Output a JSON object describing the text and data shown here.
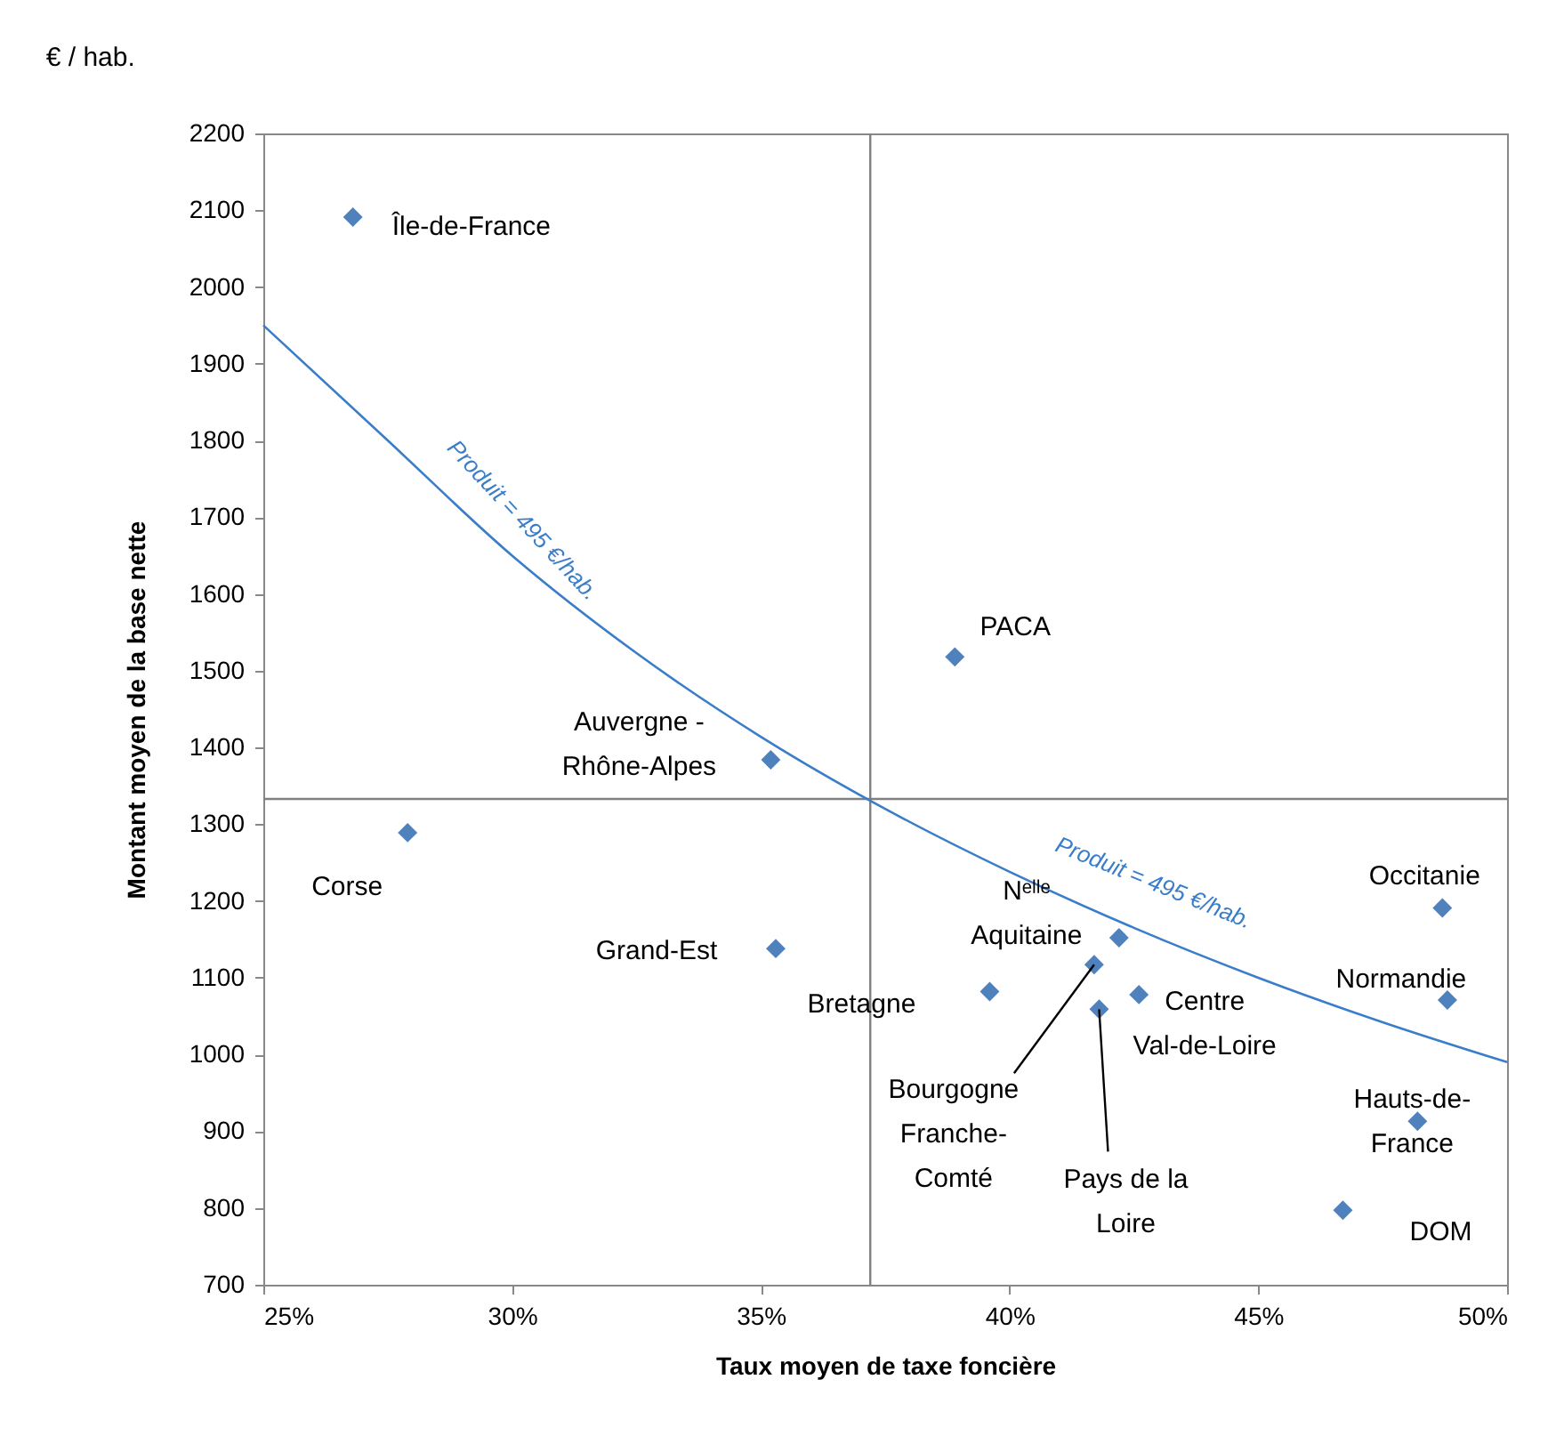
{
  "chart_data": {
    "type": "scatter",
    "subtitle": "€ / hab.",
    "xlabel": "Taux moyen de taxe foncière",
    "ylabel": "Montant moyen de la base nette",
    "xlim": [
      25,
      50
    ],
    "xticks": [
      {
        "value": 25,
        "label": "25%"
      },
      {
        "value": 30,
        "label": "30%"
      },
      {
        "value": 35,
        "label": "35%"
      },
      {
        "value": 40,
        "label": "40%"
      },
      {
        "value": 45,
        "label": "45%"
      },
      {
        "value": 50,
        "label": "50%"
      }
    ],
    "ylim": [
      700,
      2200
    ],
    "yticks": [
      700,
      800,
      900,
      1000,
      1100,
      1200,
      1300,
      1400,
      1500,
      1600,
      1700,
      1800,
      1900,
      2000,
      2100,
      2200
    ],
    "grid": false,
    "marker": "diamond",
    "series": [
      {
        "color": "#4f81bd",
        "x": [
          26.8,
          27.9,
          35.2,
          35.3,
          38.9,
          39.6,
          41.7,
          42.2,
          42.6,
          41.8,
          48.7,
          48.8,
          48.2,
          46.7
        ],
        "values": [
          2091,
          1289,
          1384,
          1138,
          1518,
          1082,
          1117,
          1152,
          1078,
          1059,
          1191,
          1071,
          913,
          797
        ]
      },
      {
        "type": "line",
        "marker": "none",
        "color": "#3a7dc9",
        "x": [
          25,
          27.5,
          30,
          32.5,
          35,
          37.5,
          40,
          42.5,
          45,
          47.5,
          50
        ],
        "values": [
          1950,
          1800,
          1650,
          1523,
          1414,
          1320,
          1238,
          1165,
          1100,
          1042,
          990
        ]
      }
    ],
    "ref_lines": [
      {
        "axis": "x",
        "value": 37.2,
        "color": "#808080"
      },
      {
        "axis": "y",
        "value": 1333,
        "color": "#808080"
      }
    ],
    "annotations": [
      {
        "text": "Île-de-France",
        "x": 26.8,
        "y": 2091
      },
      {
        "text": "Corse",
        "x": 27.9,
        "y": 1289
      },
      {
        "text": "Auvergne -\nRhône-Alpes",
        "x": 35.2,
        "y": 1384
      },
      {
        "text": "Grand-Est",
        "x": 35.3,
        "y": 1138
      },
      {
        "text": "PACA",
        "x": 38.9,
        "y": 1518
      },
      {
        "text": "Bretagne",
        "x": 39.6,
        "y": 1082
      },
      {
        "text": "Bourgogne\nFranche-\nComté",
        "x": 41.7,
        "y": 1117
      },
      {
        "text": "Nᵉˡˡᵉ\nAquitaine",
        "x": 42.2,
        "y": 1152
      },
      {
        "text": "Centre\nVal-de-Loire",
        "x": 42.6,
        "y": 1078
      },
      {
        "text": "Pays de la\nLoire",
        "x": 41.8,
        "y": 1059
      },
      {
        "text": "Occitanie",
        "x": 48.7,
        "y": 1191
      },
      {
        "text": "Normandie",
        "x": 48.8,
        "y": 1071
      },
      {
        "text": "Hauts-de-\nFrance",
        "x": 48.2,
        "y": 913
      },
      {
        "text": "DOM",
        "x": 46.7,
        "y": 797
      },
      {
        "text": "Produit = 495 €/hab.",
        "x": 29.2,
        "y": 1698
      },
      {
        "text": "Produit = 495 €/hab.",
        "x": 42.2,
        "y": 1174
      }
    ]
  }
}
